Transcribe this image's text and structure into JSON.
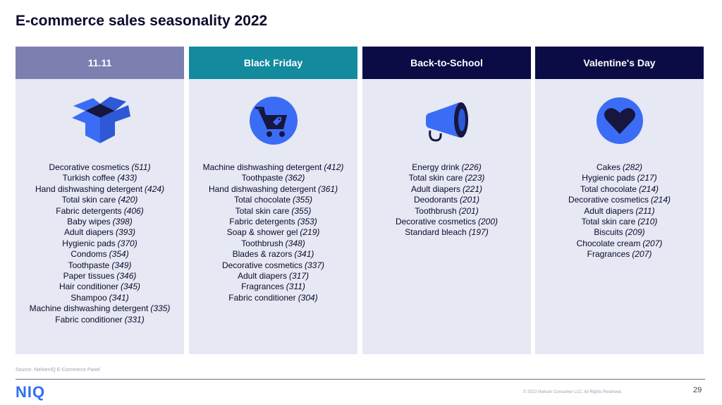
{
  "title": "E-commerce sales seasonality 2022",
  "columns": [
    {
      "header": "11.11",
      "header_color": "#7c80b0",
      "icon": "box-icon",
      "items": [
        {
          "name": "Decorative cosmetics",
          "value": "(511)"
        },
        {
          "name": "Turkish coffee",
          "value": "(433)"
        },
        {
          "name": "Hand dishwashing detergent",
          "value": "(424)"
        },
        {
          "name": "Total skin care",
          "value": "(420)"
        },
        {
          "name": "Fabric detergents",
          "value": "(406)"
        },
        {
          "name": "Baby wipes",
          "value": "(398)"
        },
        {
          "name": "Adult diapers",
          "value": "(393)"
        },
        {
          "name": "Hygienic pads",
          "value": "(370)"
        },
        {
          "name": "Condoms",
          "value": "(354)"
        },
        {
          "name": "Toothpaste",
          "value": "(349)"
        },
        {
          "name": "Paper tissues",
          "value": "(346)"
        },
        {
          "name": "Hair conditioner",
          "value": "(345)"
        },
        {
          "name": "Shampoo",
          "value": "(341)"
        },
        {
          "name": "Machine dishwashing detergent",
          "value": "(335)"
        },
        {
          "name": "Fabric conditioner",
          "value": "(331)"
        }
      ]
    },
    {
      "header": "Black Friday",
      "header_color": "#138a9e",
      "icon": "shopping-cart-icon",
      "items": [
        {
          "name": "Machine dishwashing detergent",
          "value": "(412)"
        },
        {
          "name": "Toothpaste",
          "value": "(362)"
        },
        {
          "name": "Hand dishwashing detergent",
          "value": "(361)"
        },
        {
          "name": "Total chocolate",
          "value": "(355)"
        },
        {
          "name": "Total skin care",
          "value": "(355)"
        },
        {
          "name": "Fabric detergents",
          "value": "(353)"
        },
        {
          "name": "Soap & shower gel",
          "value": "(219)"
        },
        {
          "name": "Toothbrush",
          "value": "(348)"
        },
        {
          "name": "Blades & razors",
          "value": "(341)"
        },
        {
          "name": "Decorative cosmetics",
          "value": "(337)"
        },
        {
          "name": "Adult diapers",
          "value": "(317)"
        },
        {
          "name": "Fragrances",
          "value": "(311)"
        },
        {
          "name": "Fabric conditioner",
          "value": "(304)"
        }
      ]
    },
    {
      "header": "Back-to-School",
      "header_color": "#0b0b45",
      "icon": "megaphone-icon",
      "items": [
        {
          "name": "Energy drink",
          "value": "(226)"
        },
        {
          "name": "Total skin care",
          "value": "(223)"
        },
        {
          "name": "Adult diapers",
          "value": "(221)"
        },
        {
          "name": "Deodorants",
          "value": "(201)"
        },
        {
          "name": "Toothbrush",
          "value": "(201)"
        },
        {
          "name": "Decorative cosmetics",
          "value": "(200)"
        },
        {
          "name": "Standard bleach",
          "value": "(197)"
        }
      ]
    },
    {
      "header": "Valentine's Day",
      "header_color": "#0b0b45",
      "icon": "heart-icon",
      "items": [
        {
          "name": "Cakes",
          "value": "(282)"
        },
        {
          "name": "Hygienic pads",
          "value": "(217)"
        },
        {
          "name": "Total chocolate",
          "value": "(214)"
        },
        {
          "name": "Decorative cosmetics",
          "value": "(214)"
        },
        {
          "name": "Adult diapers",
          "value": "(211)"
        },
        {
          "name": "Total skin care",
          "value": "(210)"
        },
        {
          "name": "Biscuits",
          "value": "(209)"
        },
        {
          "name": "Chocolate cream",
          "value": "(207)"
        },
        {
          "name": "Fragrances",
          "value": "(207)"
        }
      ]
    }
  ],
  "source": "Source: NielsenIQ E-Commerce Panel",
  "logo": "NIQ",
  "copyright": "© 2023 Nielsen Consumer LLC. All Rights Reserved.",
  "page_number": "29",
  "colors": {
    "accent_blue": "#3b6cf6",
    "dark_navy": "#0b0b2e",
    "panel_bg": "#e6e8f3"
  }
}
